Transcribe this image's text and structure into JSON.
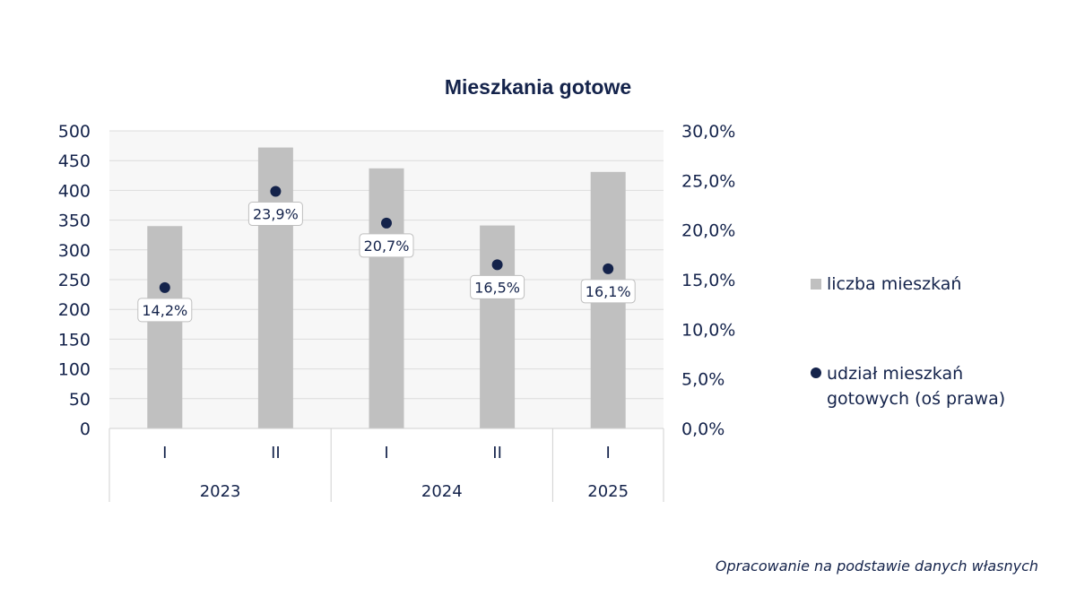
{
  "chart_data": {
    "type": "bar",
    "title": "Mieszkania gotowe",
    "categories": [
      "I",
      "II",
      "I",
      "II",
      "I"
    ],
    "groups": [
      {
        "label": "2023",
        "span": 2
      },
      {
        "label": "2024",
        "span": 2
      },
      {
        "label": "2025",
        "span": 1
      }
    ],
    "series": [
      {
        "name": "liczba mieszkań",
        "kind": "bar",
        "axis": "left",
        "color": "#c0c0c0",
        "values": [
          340,
          472,
          437,
          341,
          431
        ]
      },
      {
        "name": "udział mieszkań gotowych (oś prawa)",
        "kind": "scatter",
        "axis": "right",
        "color": "#14234b",
        "values": [
          14.2,
          23.9,
          20.7,
          16.5,
          16.1
        ],
        "labels": [
          "14,2%",
          "23,9%",
          "20,7%",
          "16,5%",
          "16,1%"
        ]
      }
    ],
    "ylim": [
      0,
      500
    ],
    "y_ticks": [
      "0",
      "50",
      "100",
      "150",
      "200",
      "250",
      "300",
      "350",
      "400",
      "450",
      "500"
    ],
    "y2lim": [
      0,
      30
    ],
    "y2_ticks": [
      "0,0%",
      "5,0%",
      "10,0%",
      "15,0%",
      "20,0%",
      "25,0%",
      "30,0%"
    ],
    "grid": true,
    "legend_position": "right",
    "legend_lines": [
      [
        "liczba mieszkań"
      ],
      [
        "udział mieszkań",
        "gotowych (oś prawa)"
      ]
    ]
  },
  "source_note": "Opracowanie na podstawie danych własnych"
}
